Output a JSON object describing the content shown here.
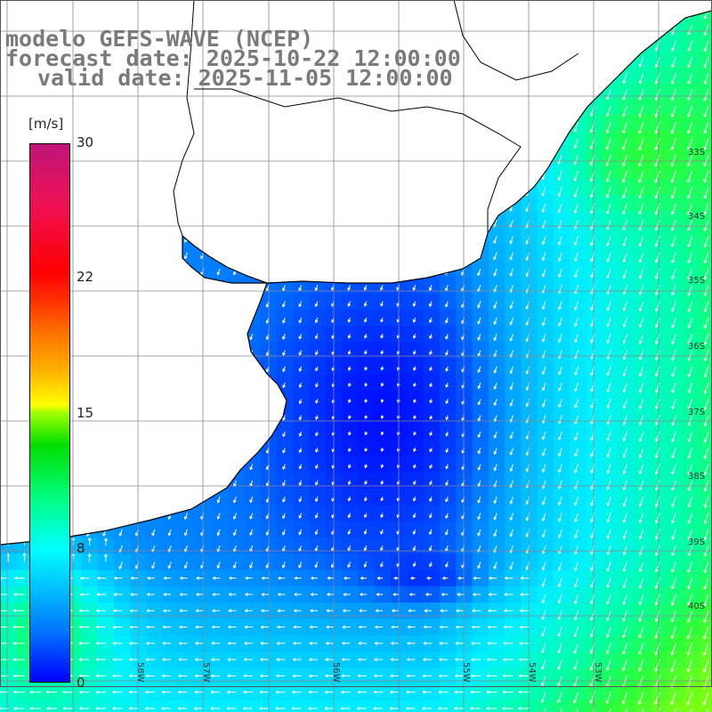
{
  "title": {
    "line1": "modelo GEFS-WAVE (NCEP)",
    "line2": "forecast date: 2025-10-22 12:00:00",
    "line3": "valid date: 2025-11-05 12:00:00"
  },
  "colorbar": {
    "unit": "[m/s]",
    "min": 0,
    "max": 30,
    "labels": [
      "30",
      "22",
      "15",
      "8",
      "0"
    ],
    "label_values": [
      30,
      22,
      15,
      8,
      0
    ],
    "colors": [
      "#0000ff",
      "#00b4ff",
      "#00ffff",
      "#00e000",
      "#ffff00",
      "#ff7000",
      "#ff0000",
      "#c0157a"
    ]
  },
  "map": {
    "field": "wind speed",
    "arrows": "white wind vectors",
    "land_color": "#ffffff",
    "grid": true,
    "lat_labels": [
      "33S",
      "34S",
      "35S",
      "36S",
      "37S",
      "38S",
      "39S",
      "40S"
    ],
    "lon_labels": [
      "58W",
      "57W",
      "56W",
      "55W",
      "54W",
      "53W"
    ],
    "colors": {
      "low": "#0044ff",
      "mid": "#00e8ff",
      "high": "#40ff40",
      "coast": "#000000",
      "grid": "#8a8a8a"
    }
  }
}
